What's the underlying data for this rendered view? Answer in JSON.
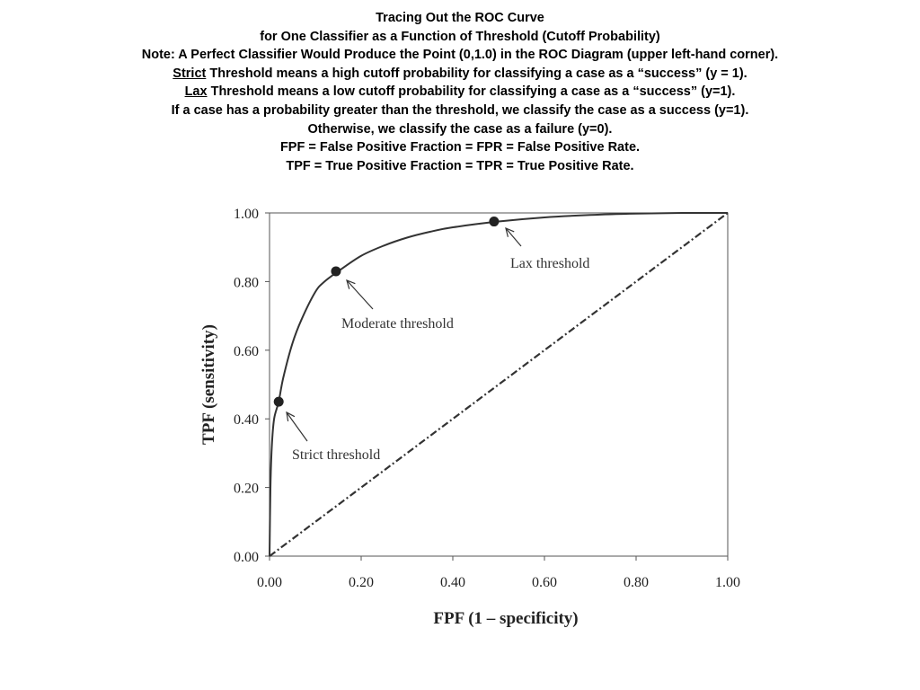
{
  "heading": {
    "line1": "Tracing Out the ROC Curve",
    "line2": "for One Classifier as a Function of Threshold (Cutoff Probability)",
    "line3": "Note: A Perfect Classifier Would Produce the Point (0,1.0) in the ROC Diagram (upper left-hand corner).",
    "line4_term": "Strict",
    "line4_rest": " Threshold means a high cutoff probability for classifying a case as a “success” (y = 1).",
    "line5_term": "Lax",
    "line5_rest": " Threshold means a low cutoff probability for classifying a case as a “success” (y=1).",
    "line6": "If a case has a probability greater than the threshold, we classify the case as a success (y=1).",
    "line7": "Otherwise, we classify the case as a failure (y=0).",
    "line8": "FPF = False Positive Fraction = FPR = False Positive Rate.",
    "line9": "TPF = True Positive Fraction = TPR = True Positive Rate."
  },
  "chart_data": {
    "type": "line",
    "title": "",
    "xlabel": "FPF (1 – specificity)",
    "ylabel": "TPF (sensitivity)",
    "xlim": [
      0,
      1
    ],
    "ylim": [
      0,
      1
    ],
    "x_ticks": [
      "0.00",
      "0.20",
      "0.40",
      "0.60",
      "0.80",
      "1.00"
    ],
    "y_ticks": [
      "0.00",
      "0.20",
      "0.40",
      "0.60",
      "0.80",
      "1.00"
    ],
    "grid": false,
    "legend": "none",
    "series": [
      {
        "style": "solid",
        "x": [
          0,
          0.002,
          0.005,
          0.01,
          0.02,
          0.03,
          0.05,
          0.07,
          0.1,
          0.12,
          0.15,
          0.2,
          0.25,
          0.3,
          0.35,
          0.4,
          0.5,
          0.6,
          0.7,
          0.8,
          0.9,
          1.0
        ],
        "y": [
          0,
          0.2,
          0.32,
          0.4,
          0.45,
          0.52,
          0.62,
          0.69,
          0.77,
          0.8,
          0.83,
          0.875,
          0.905,
          0.928,
          0.945,
          0.958,
          0.975,
          0.987,
          0.994,
          0.998,
          1.0,
          1.0
        ]
      },
      {
        "style": "dash-dot",
        "x": [
          0,
          1
        ],
        "y": [
          0,
          1
        ]
      }
    ],
    "points": [
      {
        "label": "Strict threshold",
        "x": 0.02,
        "y": 0.45
      },
      {
        "label": "Moderate threshold",
        "x": 0.145,
        "y": 0.83
      },
      {
        "label": "Lax threshold",
        "x": 0.49,
        "y": 0.975
      }
    ]
  }
}
